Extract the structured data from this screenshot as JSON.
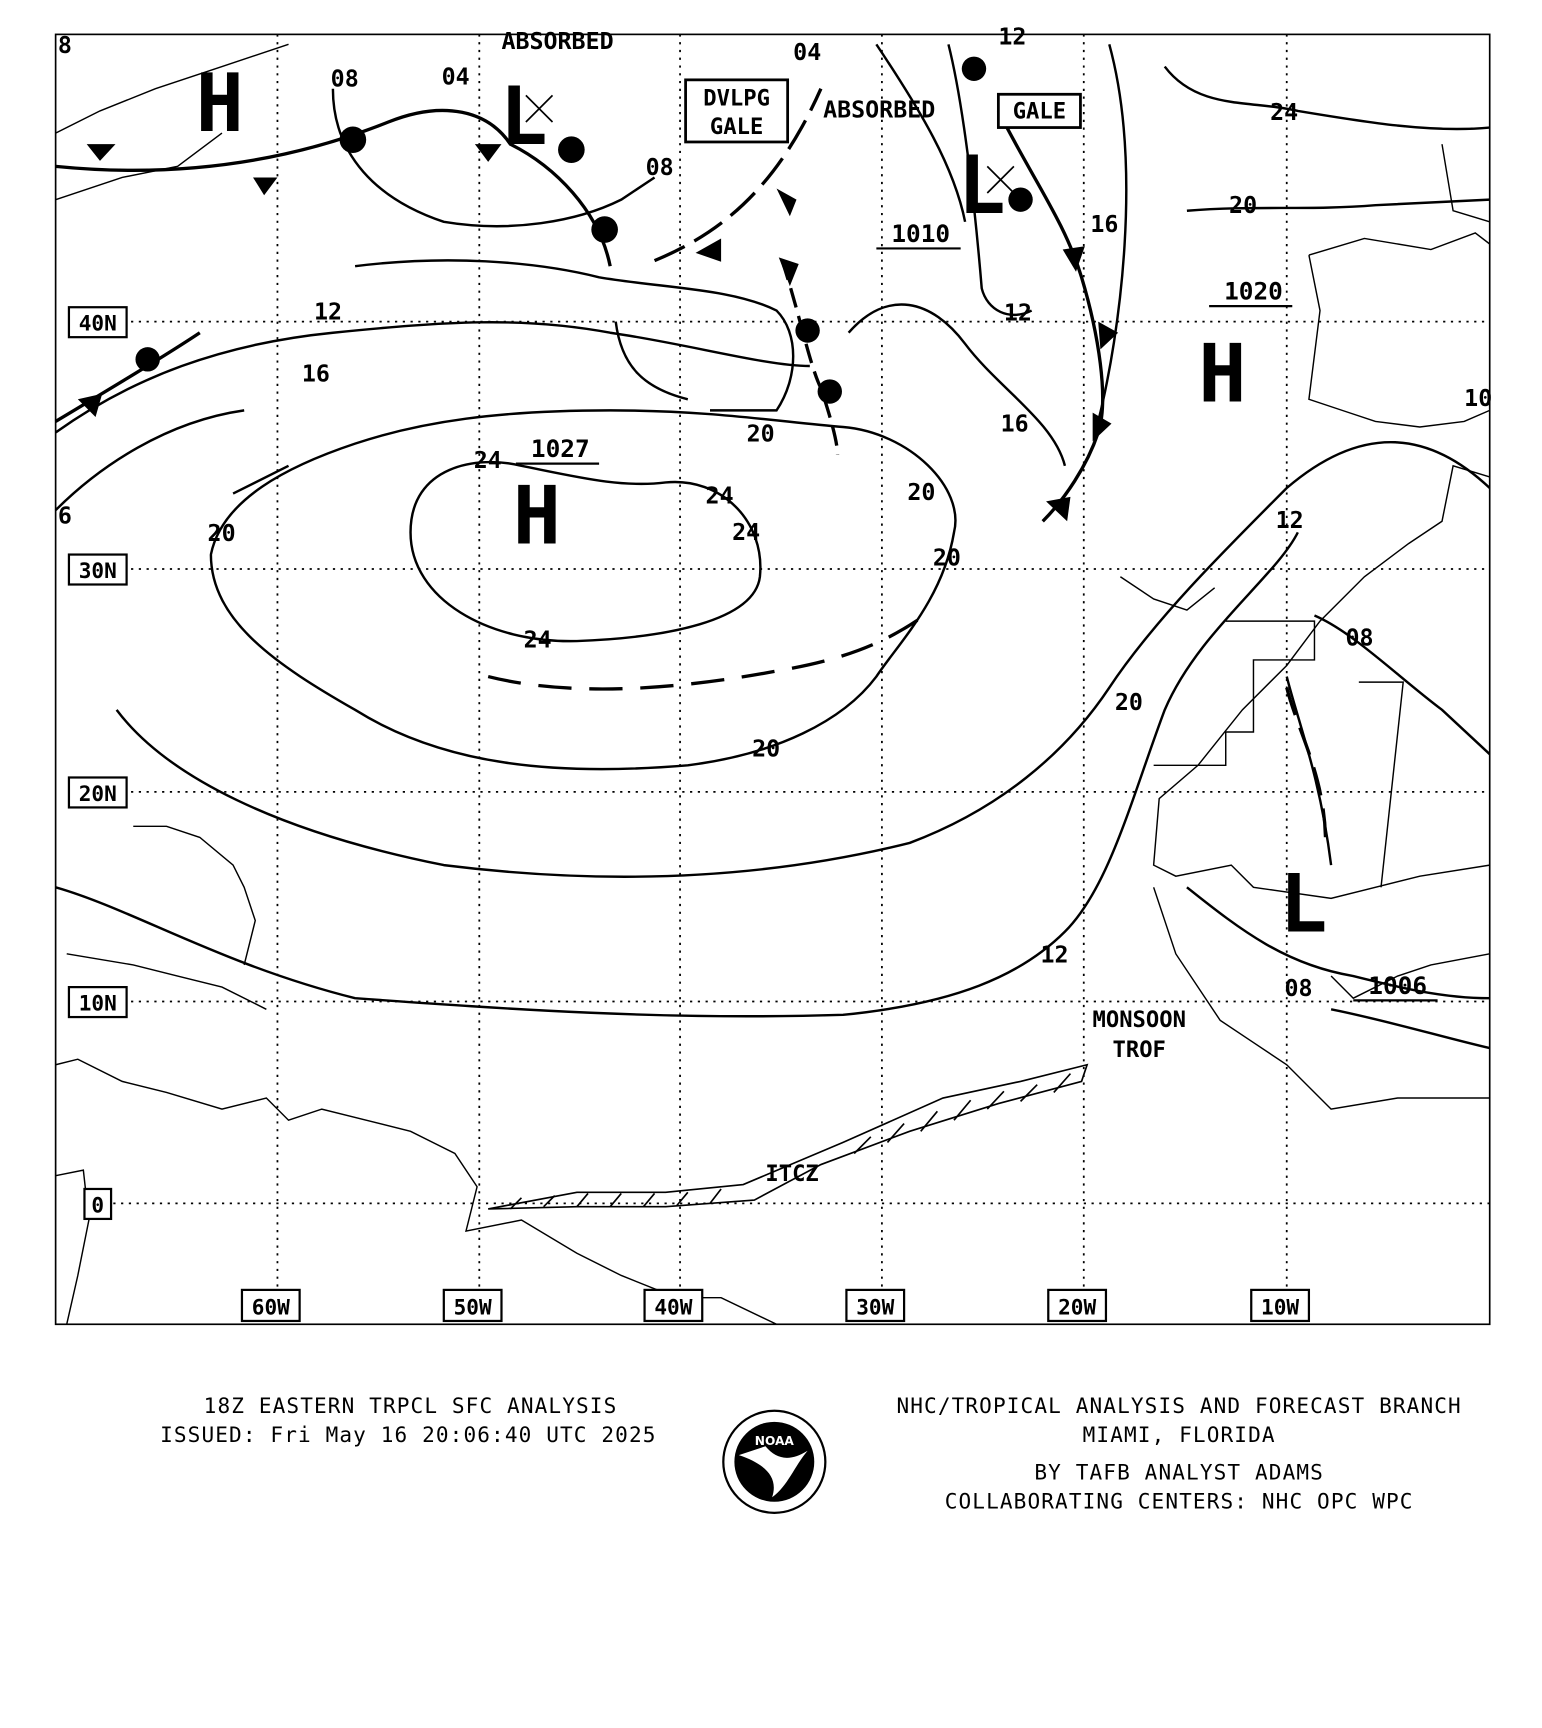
{
  "map": {
    "lon_labels": [
      "60W",
      "50W",
      "40W",
      "30W",
      "20W",
      "10W"
    ],
    "lat_labels": [
      "40N",
      "30N",
      "20N",
      "10N",
      "0"
    ],
    "pressure_centers": [
      {
        "type": "H",
        "value": "1027"
      },
      {
        "type": "H",
        "value": "1020"
      },
      {
        "type": "L",
        "value": "1010"
      },
      {
        "type": "L",
        "value": "1006"
      },
      {
        "type": "L",
        "value": ""
      },
      {
        "type": "H",
        "value": ""
      }
    ],
    "isobar_labels": [
      "08",
      "04",
      "08",
      "04",
      "12",
      "16",
      "20",
      "24",
      "24",
      "24",
      "24",
      "20",
      "20",
      "20",
      "20",
      "20",
      "16",
      "12",
      "16",
      "12",
      "08",
      "08",
      "12",
      "20",
      "24",
      "12",
      "6",
      "8",
      "10"
    ],
    "annotations": {
      "absorbed_1": "ABSORBED",
      "absorbed_2": "ABSORBED",
      "dvlpg_gale_1": "DVLPG",
      "dvlpg_gale_2": "GALE",
      "gale": "GALE",
      "monsoon_1": "MONSOON",
      "monsoon_2": "TROF",
      "itcz": "ITCZ"
    }
  },
  "footer": {
    "title": "18Z EASTERN TRPCL SFC ANALYSIS",
    "issued": "ISSUED: Fri May 16 20:06:40 UTC 2025",
    "org": "NHC/TROPICAL ANALYSIS AND FORECAST BRANCH",
    "location": "MIAMI,  FLORIDA",
    "analyst": "BY TAFB ANALYST  ADAMS",
    "collab": "COLLABORATING CENTERS: NHC OPC WPC",
    "logo_text": "NOAA"
  }
}
